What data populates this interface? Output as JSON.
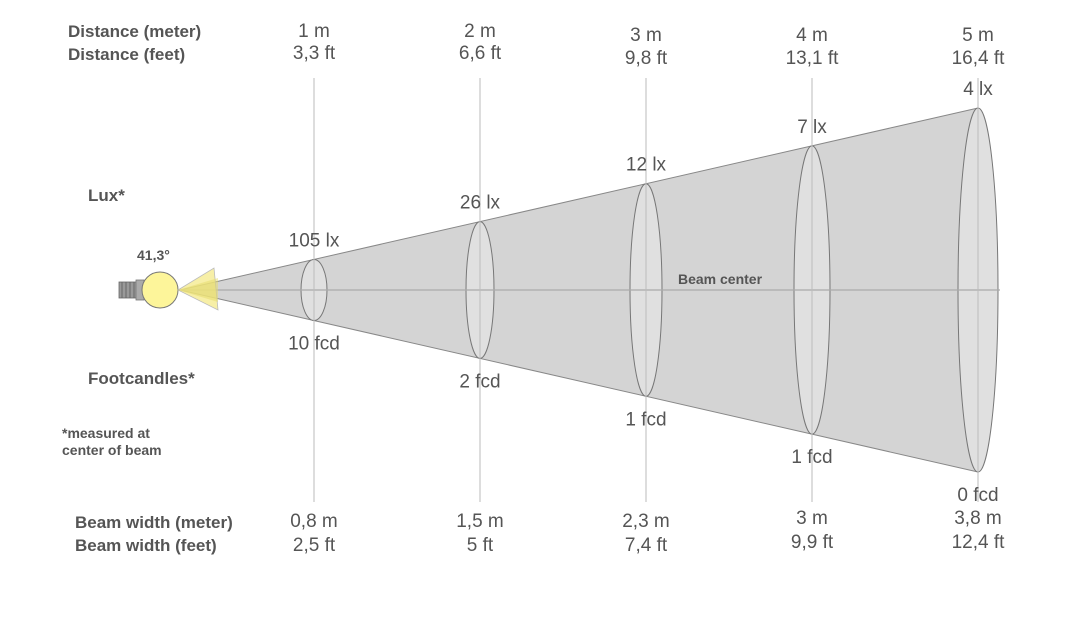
{
  "labels": {
    "distance_meter": "Distance (meter)",
    "distance_feet": "Distance (feet)",
    "lux": "Lux*",
    "footcandles": "Footcandles*",
    "note_line1": "*measured at",
    "note_line2": "center of beam",
    "beam_width_meter": "Beam width (meter)",
    "beam_width_feet": "Beam width (feet)",
    "beam_center": "Beam center",
    "beam_angle": "41,3°"
  },
  "colors": {
    "beam_fill": "#d4d4d4",
    "ellipse_fill": "#e0e0e0",
    "bulb": "#fdf59a",
    "lines": "#999999",
    "text": "#555555"
  },
  "columns": [
    {
      "distance_m": "1 m",
      "distance_ft": "3,3 ft",
      "lux": "105 lx",
      "fcd": "10 fcd",
      "width_m": "0,8 m",
      "width_ft": "2,5 ft"
    },
    {
      "distance_m": "2 m",
      "distance_ft": "6,6 ft",
      "lux": "26 lx",
      "fcd": "2 fcd",
      "width_m": "1,5 m",
      "width_ft": "5 ft"
    },
    {
      "distance_m": "3 m",
      "distance_ft": "9,8 ft",
      "lux": "12 lx",
      "fcd": "1 fcd",
      "width_m": "2,3 m",
      "width_ft": "7,4 ft"
    },
    {
      "distance_m": "4 m",
      "distance_ft": "13,1 ft",
      "lux": "7 lx",
      "fcd": "1 fcd",
      "width_m": "3 m",
      "width_ft": "9,9 ft"
    },
    {
      "distance_m": "5 m",
      "distance_ft": "16,4 ft",
      "lux": "4 lx",
      "fcd": "0 fcd",
      "width_m": "3,8 m",
      "width_ft": "12,4 ft"
    }
  ]
}
